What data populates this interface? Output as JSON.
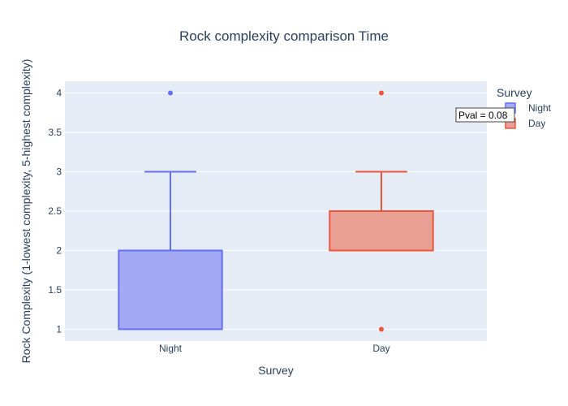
{
  "chart_data": {
    "type": "box",
    "title": "Rock complexity comparison Time",
    "xlabel": "Survey",
    "ylabel": "Rock Complexity (1-lowest complexity, 5-highest complexity)",
    "categories": [
      "Night",
      "Day"
    ],
    "y_ticks": [
      "1",
      "1.5",
      "2",
      "2.5",
      "3",
      "3.5",
      "4"
    ],
    "ylim": [
      0.85,
      4.15
    ],
    "grid": true,
    "legend": {
      "title": "Survey",
      "placement": "top-right"
    },
    "series": [
      {
        "name": "Night",
        "color": "#636efa",
        "fill": "#a3a9f4",
        "q1": 1,
        "median": 2,
        "q3": 2,
        "lowerfence": 1,
        "upperfence": 3,
        "outliers": [
          4
        ]
      },
      {
        "name": "Day",
        "color": "#ef553b",
        "fill": "#e8a095",
        "q1": 2,
        "median": 2,
        "q3": 2.5,
        "lowerfence": 2,
        "upperfence": 3,
        "outliers": [
          1,
          4
        ]
      }
    ],
    "annotation": "Pval = 0.08"
  },
  "colors": {
    "plot_bg": "#e5ecf6",
    "grid": "#ffffff",
    "text": "#2a3f5f"
  }
}
